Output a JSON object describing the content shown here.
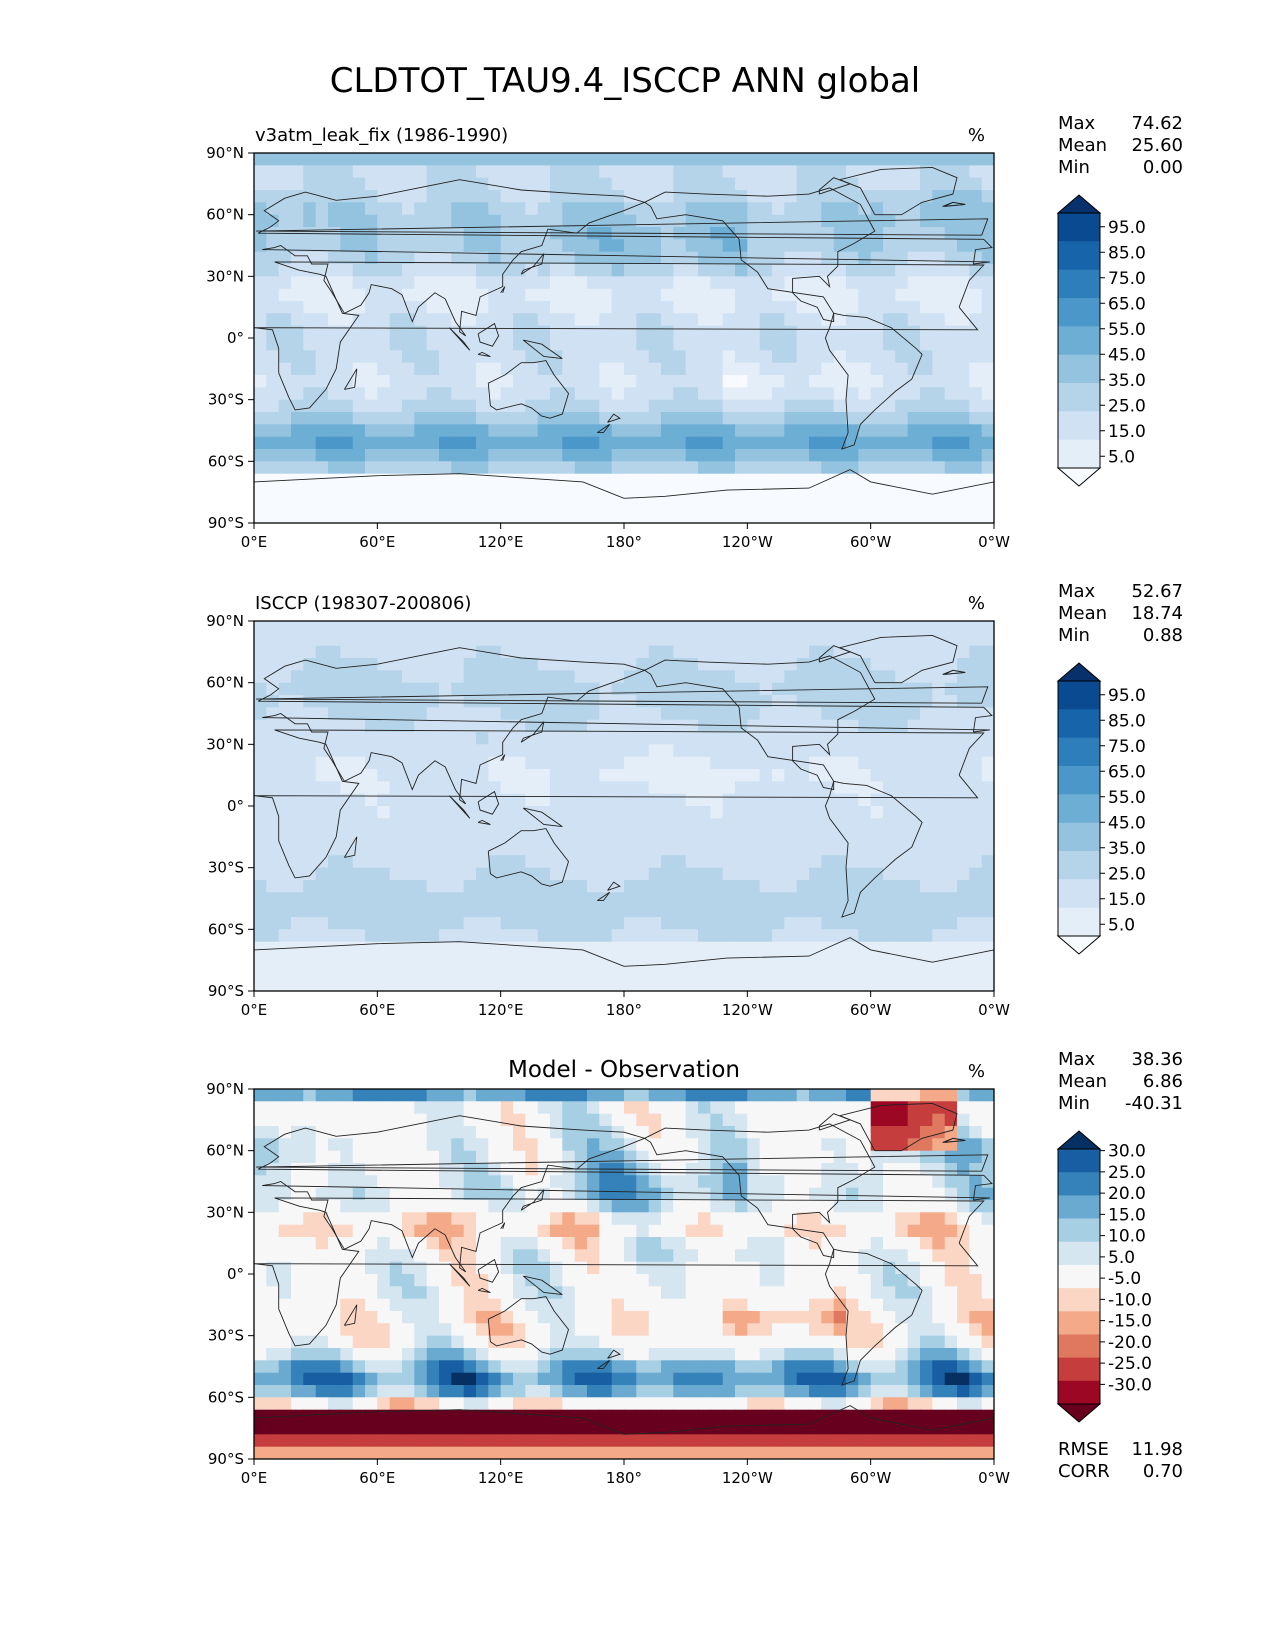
{
  "title": "CLDTOT_TAU9.4_ISCCP ANN global",
  "axes": {
    "lat_ticks": [
      "90°N",
      "60°N",
      "30°N",
      "0°",
      "30°S",
      "60°S",
      "90°S"
    ],
    "lon_ticks": [
      "0°E",
      "60°E",
      "120°E",
      "180°",
      "120°W",
      "60°W",
      "0°W"
    ]
  },
  "panels": [
    {
      "subtitle_left": "v3atm_leak_fix (1986-1990)",
      "subtitle_center": "",
      "units": "%",
      "stats": [
        {
          "label": "Max",
          "value": "74.62"
        },
        {
          "label": "Mean",
          "value": "25.60"
        },
        {
          "label": "Min",
          "value": "0.00"
        }
      ],
      "colorbar": {
        "levels": [
          "95.0",
          "85.0",
          "75.0",
          "65.0",
          "55.0",
          "45.0",
          "35.0",
          "25.0",
          "15.0",
          "5.0"
        ]
      },
      "metrics": []
    },
    {
      "subtitle_left": "ISCCP (198307-200806)",
      "subtitle_center": "",
      "units": "%",
      "stats": [
        {
          "label": "Max",
          "value": "52.67"
        },
        {
          "label": "Mean",
          "value": "18.74"
        },
        {
          "label": "Min",
          "value": "0.88"
        }
      ],
      "colorbar": {
        "levels": [
          "95.0",
          "85.0",
          "75.0",
          "65.0",
          "55.0",
          "45.0",
          "35.0",
          "25.0",
          "15.0",
          "5.0"
        ]
      },
      "metrics": []
    },
    {
      "subtitle_left": "",
      "subtitle_center": "Model - Observation",
      "units": "%",
      "stats": [
        {
          "label": "Max",
          "value": "38.36"
        },
        {
          "label": "Mean",
          "value": "6.86"
        },
        {
          "label": "Min",
          "value": "-40.31"
        }
      ],
      "colorbar": {
        "levels": [
          "30.0",
          "25.0",
          "20.0",
          "15.0",
          "10.0",
          "5.0",
          "-5.0",
          "-10.0",
          "-15.0",
          "-20.0",
          "-25.0",
          "-30.0"
        ]
      },
      "metrics": [
        {
          "label": "RMSE",
          "value": "11.98"
        },
        {
          "label": "CORR",
          "value": "0.70"
        }
      ]
    }
  ],
  "colors": {
    "seq_blues": [
      "#f7fbff",
      "#e3eef8",
      "#cfe1f2",
      "#b5d4e9",
      "#93c3df",
      "#6daed5",
      "#4b97c9",
      "#2f7ebc",
      "#1864aa",
      "#0a4a90",
      "#08306b"
    ],
    "diverging": [
      "#67001f",
      "#9c0824",
      "#c53e3d",
      "#e0785f",
      "#f4a989",
      "#fbd6c4",
      "#f7f7f7",
      "#d5e6f1",
      "#a7cfe4",
      "#6aaad1",
      "#3581ba",
      "#185ea2",
      "#053061"
    ]
  }
}
